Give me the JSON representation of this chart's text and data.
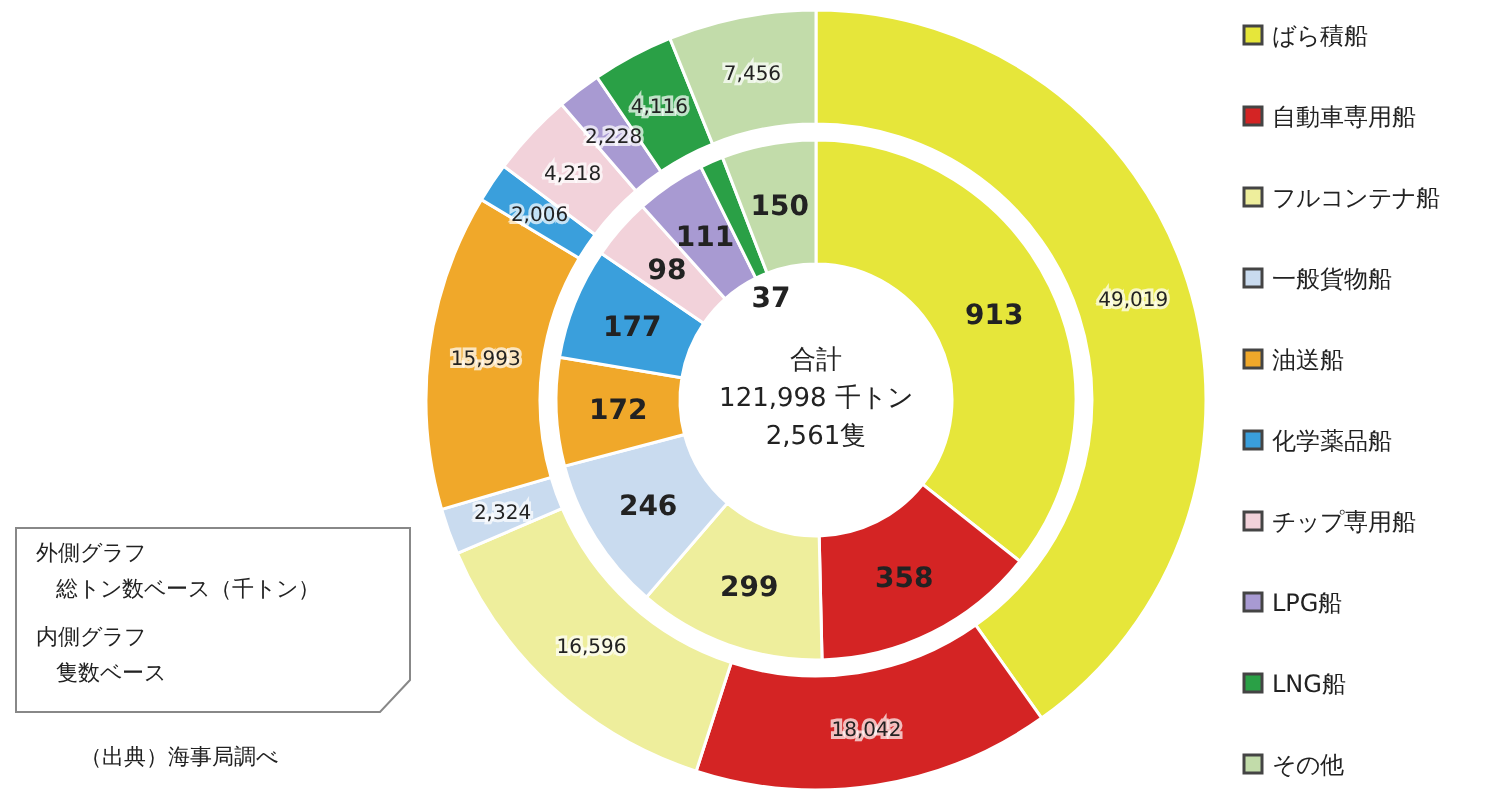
{
  "chart_data": {
    "type": "donut",
    "categories": [
      "ばら積船",
      "自動車専用船",
      "フルコンテナ船",
      "一般貨物船",
      "油送船",
      "化学薬品船",
      "チップ専用船",
      "LPG船",
      "LNG船",
      "その他"
    ],
    "colors": [
      "#e6e63a",
      "#d42424",
      "#eeee9c",
      "#c9dbef",
      "#f0a82a",
      "#3a9fdc",
      "#f2d2da",
      "#a89ad2",
      "#2aa046",
      "#c2dcaa"
    ],
    "series": [
      {
        "values": [
          913,
          358,
          299,
          246,
          172,
          177,
          98,
          111,
          37,
          150
        ],
        "value_labels": [
          "913",
          "358",
          "299",
          "246",
          "172",
          "177",
          "98",
          "111",
          "37",
          "150"
        ]
      },
      {
        "values": [
          49019,
          18042,
          16596,
          2324,
          15993,
          2006,
          4218,
          2228,
          4116,
          7456
        ],
        "value_labels": [
          "49,019",
          "18,042",
          "16,596",
          "2,324",
          "15,993",
          "2,006",
          "4,218",
          "2,228",
          "4,116",
          "7,456"
        ]
      }
    ],
    "legend": "right",
    "annotations": [
      "合計",
      "121,998 千トン",
      "2,561隻",
      "外側グラフ",
      "総トン数ベース（千トン）",
      "内側グラフ",
      "隻数ベース",
      "（出典）海事局調べ"
    ]
  }
}
